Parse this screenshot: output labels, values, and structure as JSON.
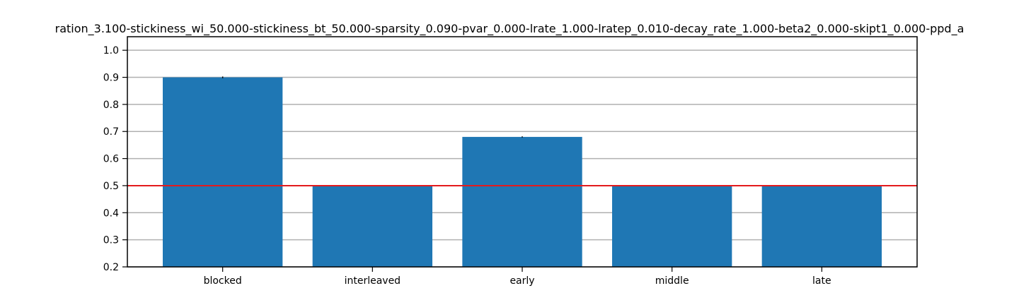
{
  "chart_data": {
    "type": "bar",
    "title": "ration_3.100-stickiness_wi_50.000-stickiness_bt_50.000-sparsity_0.090-pvar_0.000-lrate_1.000-lratep_0.010-decay_rate_1.000-beta2_0.000-skipt1_0.000-ppd_a",
    "xlabel": "",
    "ylabel": "",
    "categories": [
      "blocked",
      "interleaved",
      "early",
      "middle",
      "late"
    ],
    "values": [
      0.9,
      0.5,
      0.68,
      0.5,
      0.5
    ],
    "errors": [
      0.003,
      0.0,
      0.002,
      0.0,
      0.0
    ],
    "ylim": [
      0.2,
      1.05
    ],
    "yticks": [
      0.2,
      0.3,
      0.4,
      0.5,
      0.6,
      0.7,
      0.8,
      0.9,
      1.0
    ],
    "ytick_labels": [
      "0.2",
      "0.3",
      "0.4",
      "0.5",
      "0.6",
      "0.7",
      "0.8",
      "0.9",
      "1.0"
    ],
    "reference_line": 0.5,
    "grid": "horizontal",
    "colors": {
      "bar": "#1f77b4",
      "reference_line": "#e41a1c",
      "grid": "#b0b0b0",
      "axis": "#000000",
      "error_bar": "#000000"
    }
  }
}
